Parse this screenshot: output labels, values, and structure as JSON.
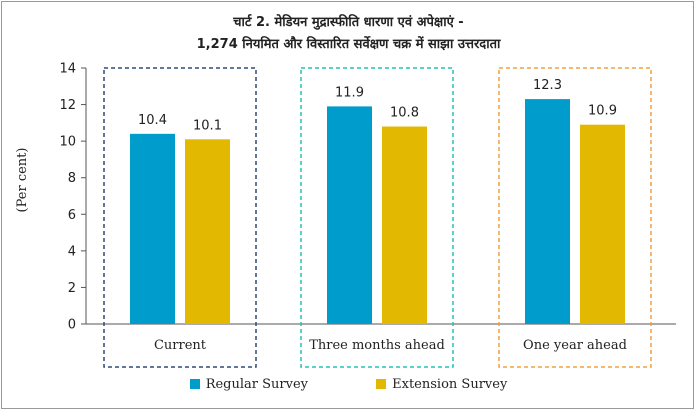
{
  "chart_data": {
    "type": "bar",
    "title": "चार्ट 2. मेडियन मुद्रास्फीति धारणा एवं अपेक्षाएं  -",
    "subtitle": "1,274 नियमित और  विस्तारित सर्वेक्षण चक्र में साझा उत्तरदाता",
    "ylabel": "(Per cent)",
    "ylim": [
      0,
      14
    ],
    "yticks": [
      0,
      2,
      4,
      6,
      8,
      10,
      12,
      14
    ],
    "categories": [
      "Current",
      "Three months ahead",
      "One year ahead"
    ],
    "series": [
      {
        "name": "Regular Survey",
        "values": [
          10.4,
          11.9,
          12.3
        ],
        "labels": [
          "10.4",
          "11.9",
          "12.3"
        ],
        "color": "#009ccc"
      },
      {
        "name": "Extension Survey",
        "values": [
          10.1,
          10.8,
          10.9
        ],
        "labels": [
          "10.1",
          "10.8",
          "10.9"
        ],
        "color": "#e3b800"
      }
    ],
    "group_box_colors": [
      "#2e4a7d",
      "#26c2b6",
      "#f0a040"
    ],
    "grid": false,
    "legend_position": "bottom"
  }
}
